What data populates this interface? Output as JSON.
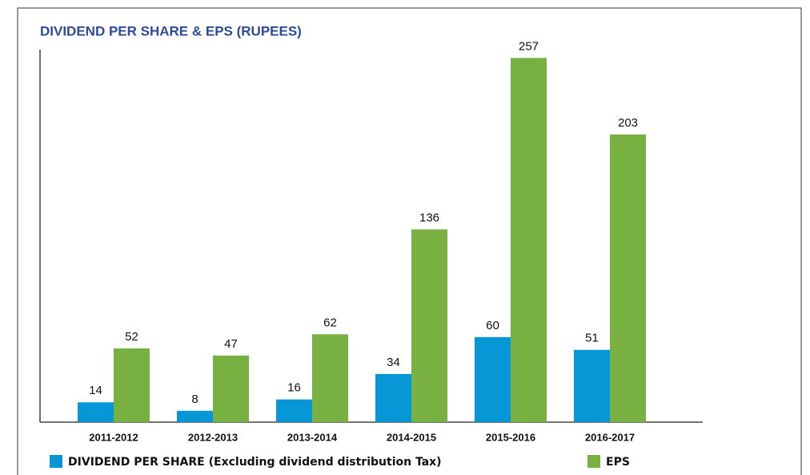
{
  "chart_data": {
    "type": "bar",
    "title": "DIVIDEND PER SHARE & EPS (RUPEES)",
    "categories": [
      "2011-2012",
      "2012-2013",
      "2013-2014",
      "2014-2015",
      "2015-2016",
      "2016-2017"
    ],
    "series": [
      {
        "name": "DIVIDEND PER SHARE (Excluding dividend distribution Tax)",
        "color": "#0797d6",
        "values": [
          14,
          8,
          16,
          34,
          60,
          51
        ]
      },
      {
        "name": "EPS",
        "color": "#78b142",
        "values": [
          52,
          47,
          62,
          136,
          257,
          203
        ]
      }
    ],
    "ylim": [
      0,
      260
    ],
    "legend": "bottom"
  }
}
